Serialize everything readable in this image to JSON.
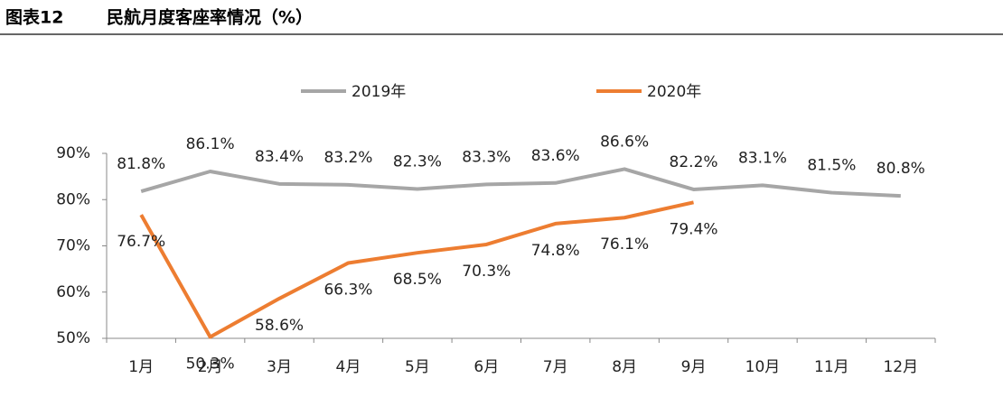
{
  "chart_data": {
    "type": "line",
    "label": "图表12",
    "title": "民航月度客座率情况（%）",
    "categories": [
      "1月",
      "2月",
      "3月",
      "4月",
      "5月",
      "6月",
      "7月",
      "8月",
      "9月",
      "10月",
      "11月",
      "12月"
    ],
    "series": [
      {
        "name": "2019年",
        "color": "#a6a6a6",
        "values": [
          81.8,
          86.1,
          83.4,
          83.2,
          82.3,
          83.3,
          83.6,
          86.6,
          82.2,
          83.1,
          81.5,
          80.8
        ],
        "value_labels": [
          "81.8%",
          "86.1%",
          "83.4%",
          "83.2%",
          "82.3%",
          "83.3%",
          "83.6%",
          "86.6%",
          "82.2%",
          "83.1%",
          "81.5%",
          "80.8%"
        ]
      },
      {
        "name": "2020年",
        "color": "#ed7d31",
        "values": [
          76.7,
          50.3,
          58.6,
          66.3,
          68.5,
          70.3,
          74.8,
          76.1,
          79.4,
          null,
          null,
          null
        ],
        "value_labels": [
          "76.7%",
          "50.3%",
          "58.6%",
          "66.3%",
          "68.5%",
          "70.3%",
          "74.8%",
          "76.1%",
          "79.4%",
          null,
          null,
          null
        ]
      }
    ],
    "ylim": [
      50,
      90
    ],
    "yticks": [
      {
        "value": 50,
        "label": "50%"
      },
      {
        "value": 60,
        "label": "60%"
      },
      {
        "value": 70,
        "label": "70%"
      },
      {
        "value": 80,
        "label": "80%"
      },
      {
        "value": 90,
        "label": "90%"
      }
    ],
    "legend": "top"
  }
}
